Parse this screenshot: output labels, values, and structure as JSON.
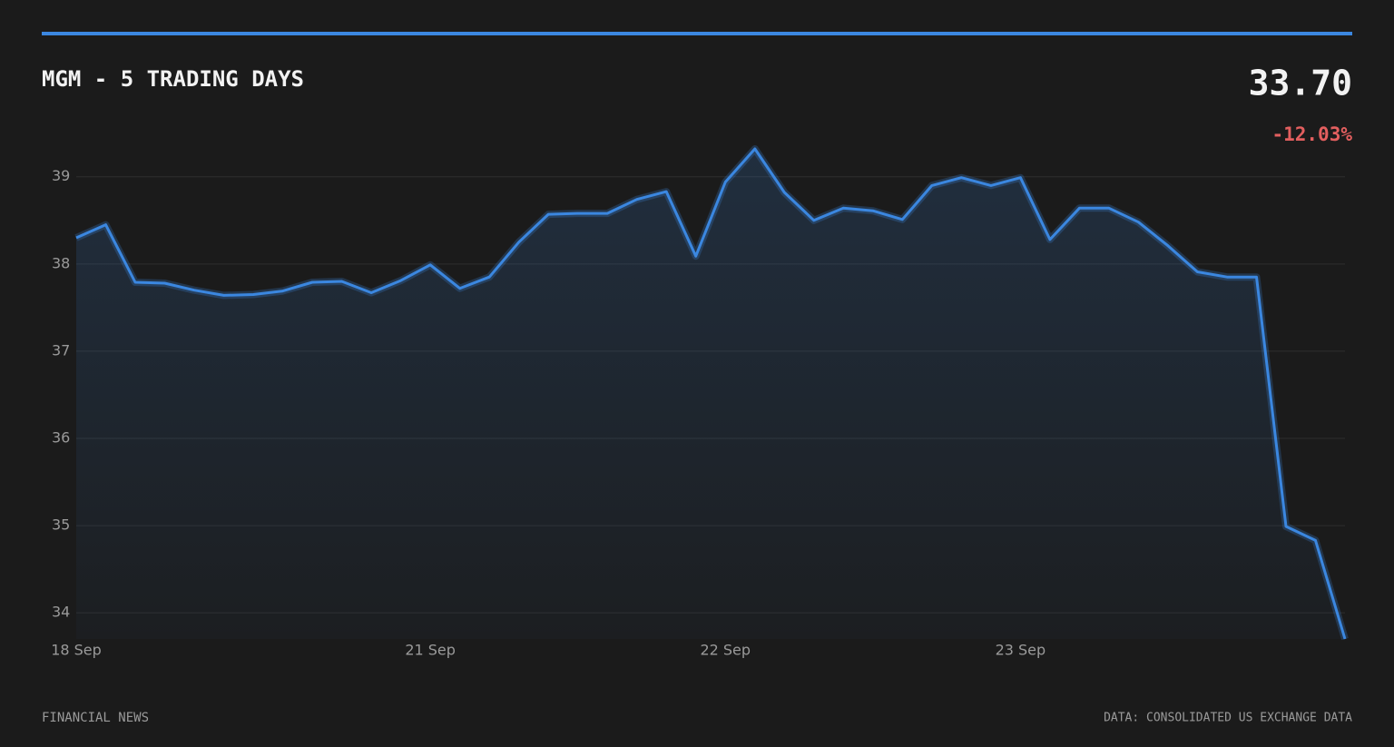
{
  "chart_data": {
    "type": "line",
    "title": "MGM - 5 TRADING DAYS",
    "price": "33.70",
    "change": "-12.03%",
    "footer_left": "FINANCIAL NEWS",
    "footer_right": "DATA: CONSOLIDATED US EXCHANGE DATA",
    "categories": [
      "18 Sep",
      null,
      null,
      null,
      null,
      null,
      null,
      null,
      null,
      null,
      null,
      null,
      "21 Sep",
      null,
      null,
      null,
      null,
      null,
      null,
      null,
      null,
      null,
      "22 Sep",
      null,
      null,
      null,
      null,
      null,
      null,
      null,
      null,
      null,
      "23 Sep",
      null,
      null,
      null,
      null,
      null,
      null,
      null,
      null,
      null,
      null,
      null
    ],
    "values": [
      38.3,
      38.45,
      37.79,
      37.78,
      37.7,
      37.64,
      37.65,
      37.69,
      37.79,
      37.8,
      37.67,
      37.81,
      37.99,
      37.72,
      37.85,
      38.25,
      38.57,
      38.58,
      38.58,
      38.74,
      38.83,
      38.09,
      38.94,
      39.32,
      38.82,
      38.5,
      38.64,
      38.61,
      38.51,
      38.9,
      38.99,
      38.9,
      38.99,
      38.28,
      38.64,
      38.64,
      38.48,
      38.21,
      37.91,
      37.85,
      37.85,
      34.99,
      34.83,
      33.7
    ],
    "color": "#3b87e0",
    "ylim": [
      33.7,
      39.32
    ],
    "yticks": [
      34,
      35,
      36,
      37,
      38,
      39
    ],
    "grid": true
  }
}
